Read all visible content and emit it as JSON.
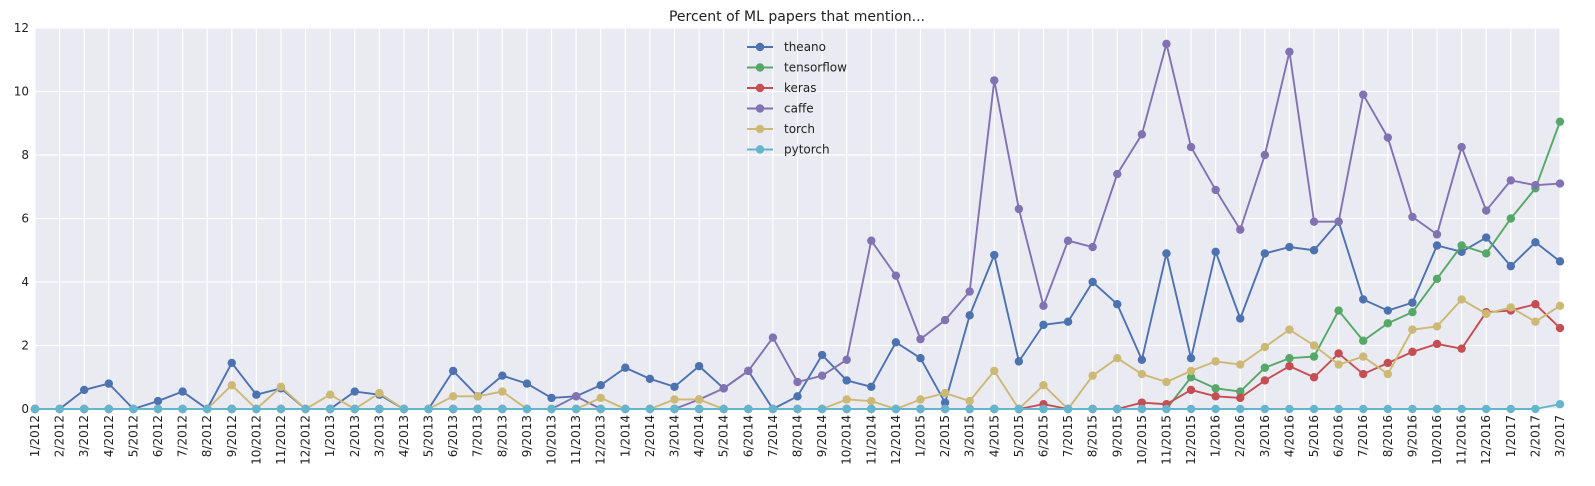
{
  "chart_data": {
    "type": "line",
    "title": "Percent of ML papers that mention...",
    "xlabel": "",
    "ylabel": "",
    "ylim": [
      0,
      12
    ],
    "yticks": [
      0,
      2,
      4,
      6,
      8,
      10,
      12
    ],
    "grid": true,
    "legend_position": "top-center",
    "categories": [
      "1/2012",
      "2/2012",
      "3/2012",
      "4/2012",
      "5/2012",
      "6/2012",
      "7/2012",
      "8/2012",
      "9/2012",
      "10/2012",
      "11/2012",
      "12/2012",
      "1/2013",
      "2/2013",
      "3/2013",
      "4/2013",
      "5/2013",
      "6/2013",
      "7/2013",
      "8/2013",
      "9/2013",
      "10/2013",
      "11/2013",
      "12/2013",
      "1/2014",
      "2/2014",
      "3/2014",
      "4/2014",
      "5/2014",
      "6/2014",
      "7/2014",
      "8/2014",
      "9/2014",
      "10/2014",
      "11/2014",
      "12/2014",
      "1/2015",
      "2/2015",
      "3/2015",
      "4/2015",
      "5/2015",
      "6/2015",
      "7/2015",
      "8/2015",
      "9/2015",
      "10/2015",
      "11/2015",
      "12/2015",
      "1/2016",
      "2/2016",
      "3/2016",
      "4/2016",
      "5/2016",
      "6/2016",
      "7/2016",
      "8/2016",
      "9/2016",
      "10/2016",
      "11/2016",
      "12/2016",
      "1/2017",
      "2/2017",
      "3/2017"
    ],
    "series": [
      {
        "name": "theano",
        "color": "#4C72B0",
        "values": [
          0,
          0,
          0.6,
          0.8,
          0,
          0.25,
          0.55,
          0,
          1.45,
          0.45,
          0.65,
          0,
          0,
          0.55,
          0.45,
          0,
          0,
          1.2,
          0.4,
          1.05,
          0.8,
          0.35,
          0.4,
          0.75,
          1.3,
          0.95,
          0.7,
          1.35,
          0.65,
          1.2,
          0,
          0.4,
          1.7,
          0.9,
          0.7,
          2.1,
          1.6,
          0.2,
          2.95,
          4.85,
          1.5,
          2.65,
          2.75,
          4.0,
          3.3,
          1.55,
          4.9,
          1.6,
          4.95,
          2.85,
          4.9,
          5.1,
          5.0,
          5.9,
          3.45,
          3.1,
          3.35,
          5.15,
          4.95,
          5.4,
          4.5,
          5.25,
          4.65
        ]
      },
      {
        "name": "tensorflow",
        "color": "#55A868",
        "values": [
          0,
          0,
          0,
          0,
          0,
          0,
          0,
          0,
          0,
          0,
          0,
          0,
          0,
          0,
          0,
          0,
          0,
          0,
          0,
          0,
          0,
          0,
          0,
          0,
          0,
          0,
          0,
          0,
          0,
          0,
          0,
          0,
          0,
          0,
          0,
          0,
          0,
          0,
          0,
          0,
          0,
          0,
          0,
          0,
          0,
          0,
          0,
          1.0,
          0.65,
          0.55,
          1.3,
          1.6,
          1.65,
          3.1,
          2.15,
          2.7,
          3.05,
          4.1,
          5.15,
          4.9,
          6.0,
          6.95,
          9.05
        ]
      },
      {
        "name": "keras",
        "color": "#C44E52",
        "values": [
          0,
          0,
          0,
          0,
          0,
          0,
          0,
          0,
          0,
          0,
          0,
          0,
          0,
          0,
          0,
          0,
          0,
          0,
          0,
          0,
          0,
          0,
          0,
          0,
          0,
          0,
          0,
          0,
          0,
          0,
          0,
          0,
          0,
          0,
          0,
          0,
          0,
          0,
          0,
          0,
          0,
          0.15,
          0,
          0,
          0,
          0.2,
          0.15,
          0.6,
          0.4,
          0.35,
          0.9,
          1.35,
          1.0,
          1.75,
          1.1,
          1.45,
          1.8,
          2.05,
          1.9,
          3.05,
          3.1,
          3.3,
          2.55
        ]
      },
      {
        "name": "caffe",
        "color": "#8172B2",
        "values": [
          0,
          0,
          0,
          0,
          0,
          0,
          0,
          0,
          0,
          0,
          0,
          0,
          0,
          0,
          0,
          0,
          0,
          0,
          0,
          0,
          0,
          0,
          0.4,
          0,
          0,
          0,
          0,
          0.3,
          0.65,
          1.2,
          2.25,
          0.85,
          1.05,
          1.55,
          5.3,
          4.2,
          2.2,
          2.8,
          3.7,
          10.35,
          6.3,
          3.25,
          5.3,
          5.1,
          7.4,
          8.65,
          11.5,
          8.25,
          6.9,
          5.65,
          8.0,
          11.25,
          5.9,
          5.9,
          9.9,
          8.55,
          6.05,
          5.5,
          8.25,
          6.25,
          7.2,
          7.05,
          7.1
        ]
      },
      {
        "name": "torch",
        "color": "#CCB974",
        "values": [
          0,
          0,
          0,
          0,
          0,
          0,
          0,
          0,
          0.75,
          0,
          0.7,
          0,
          0.45,
          0,
          0.5,
          0,
          0,
          0.4,
          0.4,
          0.55,
          0,
          0,
          0,
          0.35,
          0,
          0,
          0.3,
          0.3,
          0,
          0,
          0,
          0,
          0,
          0.3,
          0.25,
          0,
          0.3,
          0.5,
          0.25,
          1.2,
          0,
          0.75,
          0,
          1.05,
          1.6,
          1.1,
          0.85,
          1.2,
          1.5,
          1.4,
          1.95,
          2.5,
          2.0,
          1.4,
          1.65,
          1.1,
          2.5,
          2.6,
          3.45,
          3.0,
          3.2,
          2.75,
          3.25
        ]
      },
      {
        "name": "pytorch",
        "color": "#64B5CD",
        "values": [
          0,
          0,
          0,
          0,
          0,
          0,
          0,
          0,
          0,
          0,
          0,
          0,
          0,
          0,
          0,
          0,
          0,
          0,
          0,
          0,
          0,
          0,
          0,
          0,
          0,
          0,
          0,
          0,
          0,
          0,
          0,
          0,
          0,
          0,
          0,
          0,
          0,
          0,
          0,
          0,
          0,
          0,
          0,
          0,
          0,
          0,
          0,
          0,
          0,
          0,
          0,
          0,
          0,
          0,
          0,
          0,
          0,
          0,
          0,
          0,
          0,
          0,
          0.15
        ]
      }
    ]
  }
}
